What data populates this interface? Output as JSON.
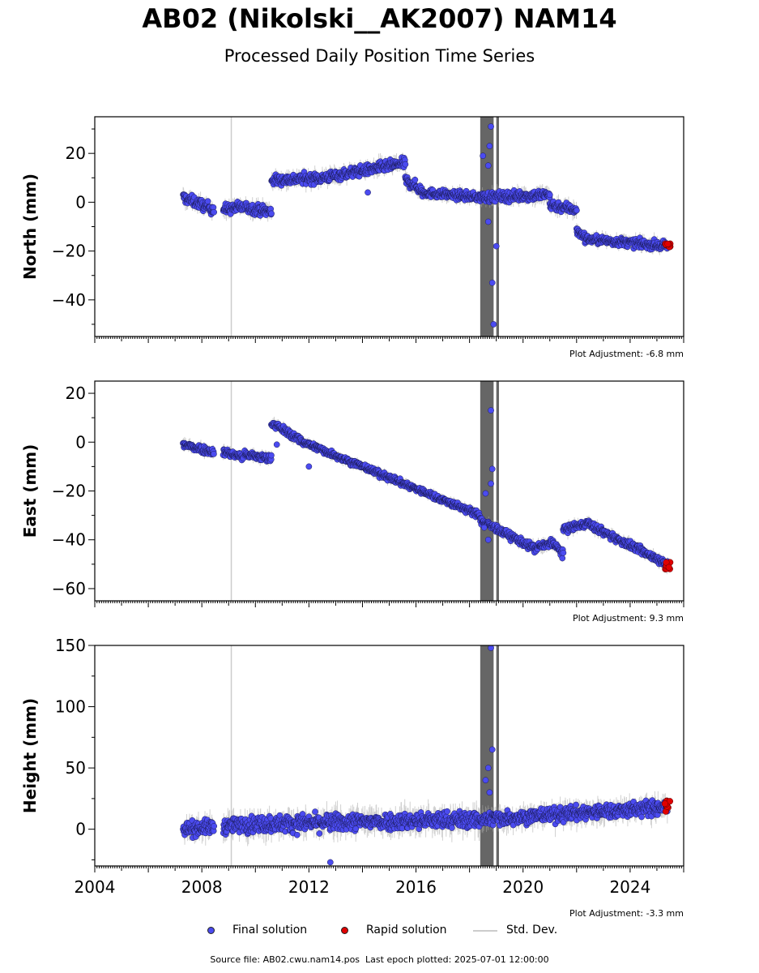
{
  "title": "AB02 (Nikolski__AK2007) NAM14",
  "subtitle": "Processed Daily Position Time Series",
  "footer": {
    "source_label": "Source file:",
    "source_file": "AB02.cwu.nam14.pos",
    "last_epoch_label": "Last epoch plotted:",
    "last_epoch": "2025-07-01 12:00:00"
  },
  "legend": [
    {
      "label": "Final solution",
      "kind": "dot",
      "color": "#4b4bf0"
    },
    {
      "label": "Rapid solution",
      "kind": "dot",
      "color": "#e00000"
    },
    {
      "label": "Std. Dev.",
      "kind": "line",
      "color": "#cccccc"
    }
  ],
  "colors": {
    "final": "#4b4bf0",
    "rapid": "#e00000",
    "stddev": "#aaaaaa",
    "gap": "#666666",
    "event": "#cccccc"
  },
  "chart_data": [
    {
      "type": "scatter",
      "ylabel": "North (mm)",
      "adjustment": "Plot Adjustment: -6.8 mm",
      "xlim": [
        2004,
        2026
      ],
      "ylim": [
        -55,
        35
      ],
      "yticks": [
        20,
        0,
        -20,
        -40
      ],
      "ytick_labels": [
        "20",
        "0",
        "−20",
        "−40"
      ],
      "gaps": [
        [
          2018.4,
          2018.9
        ],
        [
          2019.0,
          2019.1
        ]
      ],
      "events": [
        2009.1
      ],
      "segments": [
        {
          "x": [
            2007.3,
            2008.45
          ],
          "y": [
            2,
            -3
          ],
          "noise": 2.5
        },
        {
          "x": [
            2008.8,
            2009.55
          ],
          "y": [
            -3,
            -2
          ],
          "noise": 2.5
        },
        {
          "x": [
            2009.6,
            2010.6
          ],
          "y": [
            -2,
            -4
          ],
          "noise": 2.5
        },
        {
          "x": [
            2010.6,
            2012.5
          ],
          "y": [
            9,
            10
          ],
          "noise": 2.5
        },
        {
          "x": [
            2012.5,
            2015.6
          ],
          "y": [
            10,
            16
          ],
          "noise": 2.5
        },
        {
          "x": [
            2015.6,
            2016.2
          ],
          "y": [
            9,
            5
          ],
          "noise": 2.5
        },
        {
          "x": [
            2016.2,
            2018.4
          ],
          "y": [
            4,
            2
          ],
          "noise": 2.0
        },
        {
          "x": [
            2018.4,
            2021.0
          ],
          "y": [
            2,
            3
          ],
          "noise": 2.5
        },
        {
          "x": [
            2021.0,
            2022.0
          ],
          "y": [
            -1,
            -3
          ],
          "noise": 2.5
        },
        {
          "x": [
            2022.0,
            2022.3
          ],
          "y": [
            -12,
            -14
          ],
          "noise": 2.0
        },
        {
          "x": [
            2022.3,
            2025.4
          ],
          "y": [
            -15,
            -18
          ],
          "noise": 2.0
        }
      ],
      "outliers": [
        [
          2018.5,
          19
        ],
        [
          2018.8,
          31
        ],
        [
          2018.75,
          23
        ],
        [
          2018.7,
          15
        ],
        [
          2018.7,
          -8
        ],
        [
          2018.85,
          -33
        ],
        [
          2018.9,
          -50
        ],
        [
          2019.0,
          -18
        ],
        [
          2014.2,
          4
        ]
      ],
      "rapid": {
        "x": [
          2025.3,
          2025.5
        ],
        "y": [
          -19,
          -16
        ]
      }
    },
    {
      "type": "scatter",
      "ylabel": "East (mm)",
      "adjustment": "Plot Adjustment: 9.3 mm",
      "xlim": [
        2004,
        2026
      ],
      "ylim": [
        -65,
        25
      ],
      "yticks": [
        20,
        0,
        -20,
        -40,
        -60
      ],
      "ytick_labels": [
        "20",
        "0",
        "−20",
        "−40",
        "−60"
      ],
      "gaps": [
        [
          2018.4,
          2018.9
        ],
        [
          2019.0,
          2019.1
        ]
      ],
      "events": [
        2009.1
      ],
      "segments": [
        {
          "x": [
            2007.3,
            2008.45
          ],
          "y": [
            -1,
            -4
          ],
          "noise": 1.8
        },
        {
          "x": [
            2008.8,
            2009.55
          ],
          "y": [
            -4,
            -6
          ],
          "noise": 1.8
        },
        {
          "x": [
            2009.6,
            2010.6
          ],
          "y": [
            -5,
            -7
          ],
          "noise": 1.8
        },
        {
          "x": [
            2010.6,
            2011.8
          ],
          "y": [
            8,
            0
          ],
          "noise": 1.8
        },
        {
          "x": [
            2011.8,
            2018.4
          ],
          "y": [
            0,
            -30
          ],
          "noise": 1.5
        },
        {
          "x": [
            2018.4,
            2020.5
          ],
          "y": [
            -32,
            -44
          ],
          "noise": 1.8
        },
        {
          "x": [
            2020.5,
            2021.0
          ],
          "y": [
            -43,
            -42
          ],
          "noise": 2.0
        },
        {
          "x": [
            2021.0,
            2021.5
          ],
          "y": [
            -40,
            -46
          ],
          "noise": 2.0
        },
        {
          "x": [
            2021.5,
            2022.5
          ],
          "y": [
            -36,
            -33
          ],
          "noise": 1.8
        },
        {
          "x": [
            2022.5,
            2025.4
          ],
          "y": [
            -34,
            -50
          ],
          "noise": 1.8
        }
      ],
      "outliers": [
        [
          2018.8,
          13
        ],
        [
          2018.85,
          -11
        ],
        [
          2018.8,
          -17
        ],
        [
          2018.6,
          -21
        ],
        [
          2018.55,
          -35
        ],
        [
          2018.7,
          -40
        ],
        [
          2012.0,
          -10
        ],
        [
          2010.8,
          -1
        ]
      ],
      "rapid": {
        "x": [
          2025.3,
          2025.5
        ],
        "y": [
          -52,
          -49
        ]
      }
    },
    {
      "type": "scatter",
      "ylabel": "Height (mm)",
      "adjustment": "Plot Adjustment: -3.3 mm",
      "xlim": [
        2004,
        2026
      ],
      "ylim": [
        -30,
        150
      ],
      "yticks": [
        150,
        100,
        50,
        0
      ],
      "ytick_labels": [
        "150",
        "100",
        "50",
        "0"
      ],
      "xticks": [
        2004,
        2008,
        2012,
        2016,
        2020,
        2024
      ],
      "gaps": [
        [
          2018.4,
          2018.9
        ],
        [
          2019.0,
          2019.1
        ]
      ],
      "events": [
        2009.1
      ],
      "segments": [
        {
          "x": [
            2007.3,
            2008.45
          ],
          "y": [
            0,
            2
          ],
          "noise": 7
        },
        {
          "x": [
            2008.8,
            2009.55
          ],
          "y": [
            2,
            4
          ],
          "noise": 7
        },
        {
          "x": [
            2009.6,
            2018.4
          ],
          "y": [
            4,
            8
          ],
          "noise": 8
        },
        {
          "x": [
            2018.4,
            2025.4
          ],
          "y": [
            8,
            18
          ],
          "noise": 7
        }
      ],
      "outliers": [
        [
          2018.8,
          148
        ],
        [
          2018.85,
          65
        ],
        [
          2018.7,
          50
        ],
        [
          2018.6,
          40
        ],
        [
          2018.75,
          30
        ],
        [
          2012.8,
          -27
        ]
      ],
      "rapid": {
        "x": [
          2025.3,
          2025.5
        ],
        "y": [
          14,
          24
        ]
      }
    }
  ]
}
